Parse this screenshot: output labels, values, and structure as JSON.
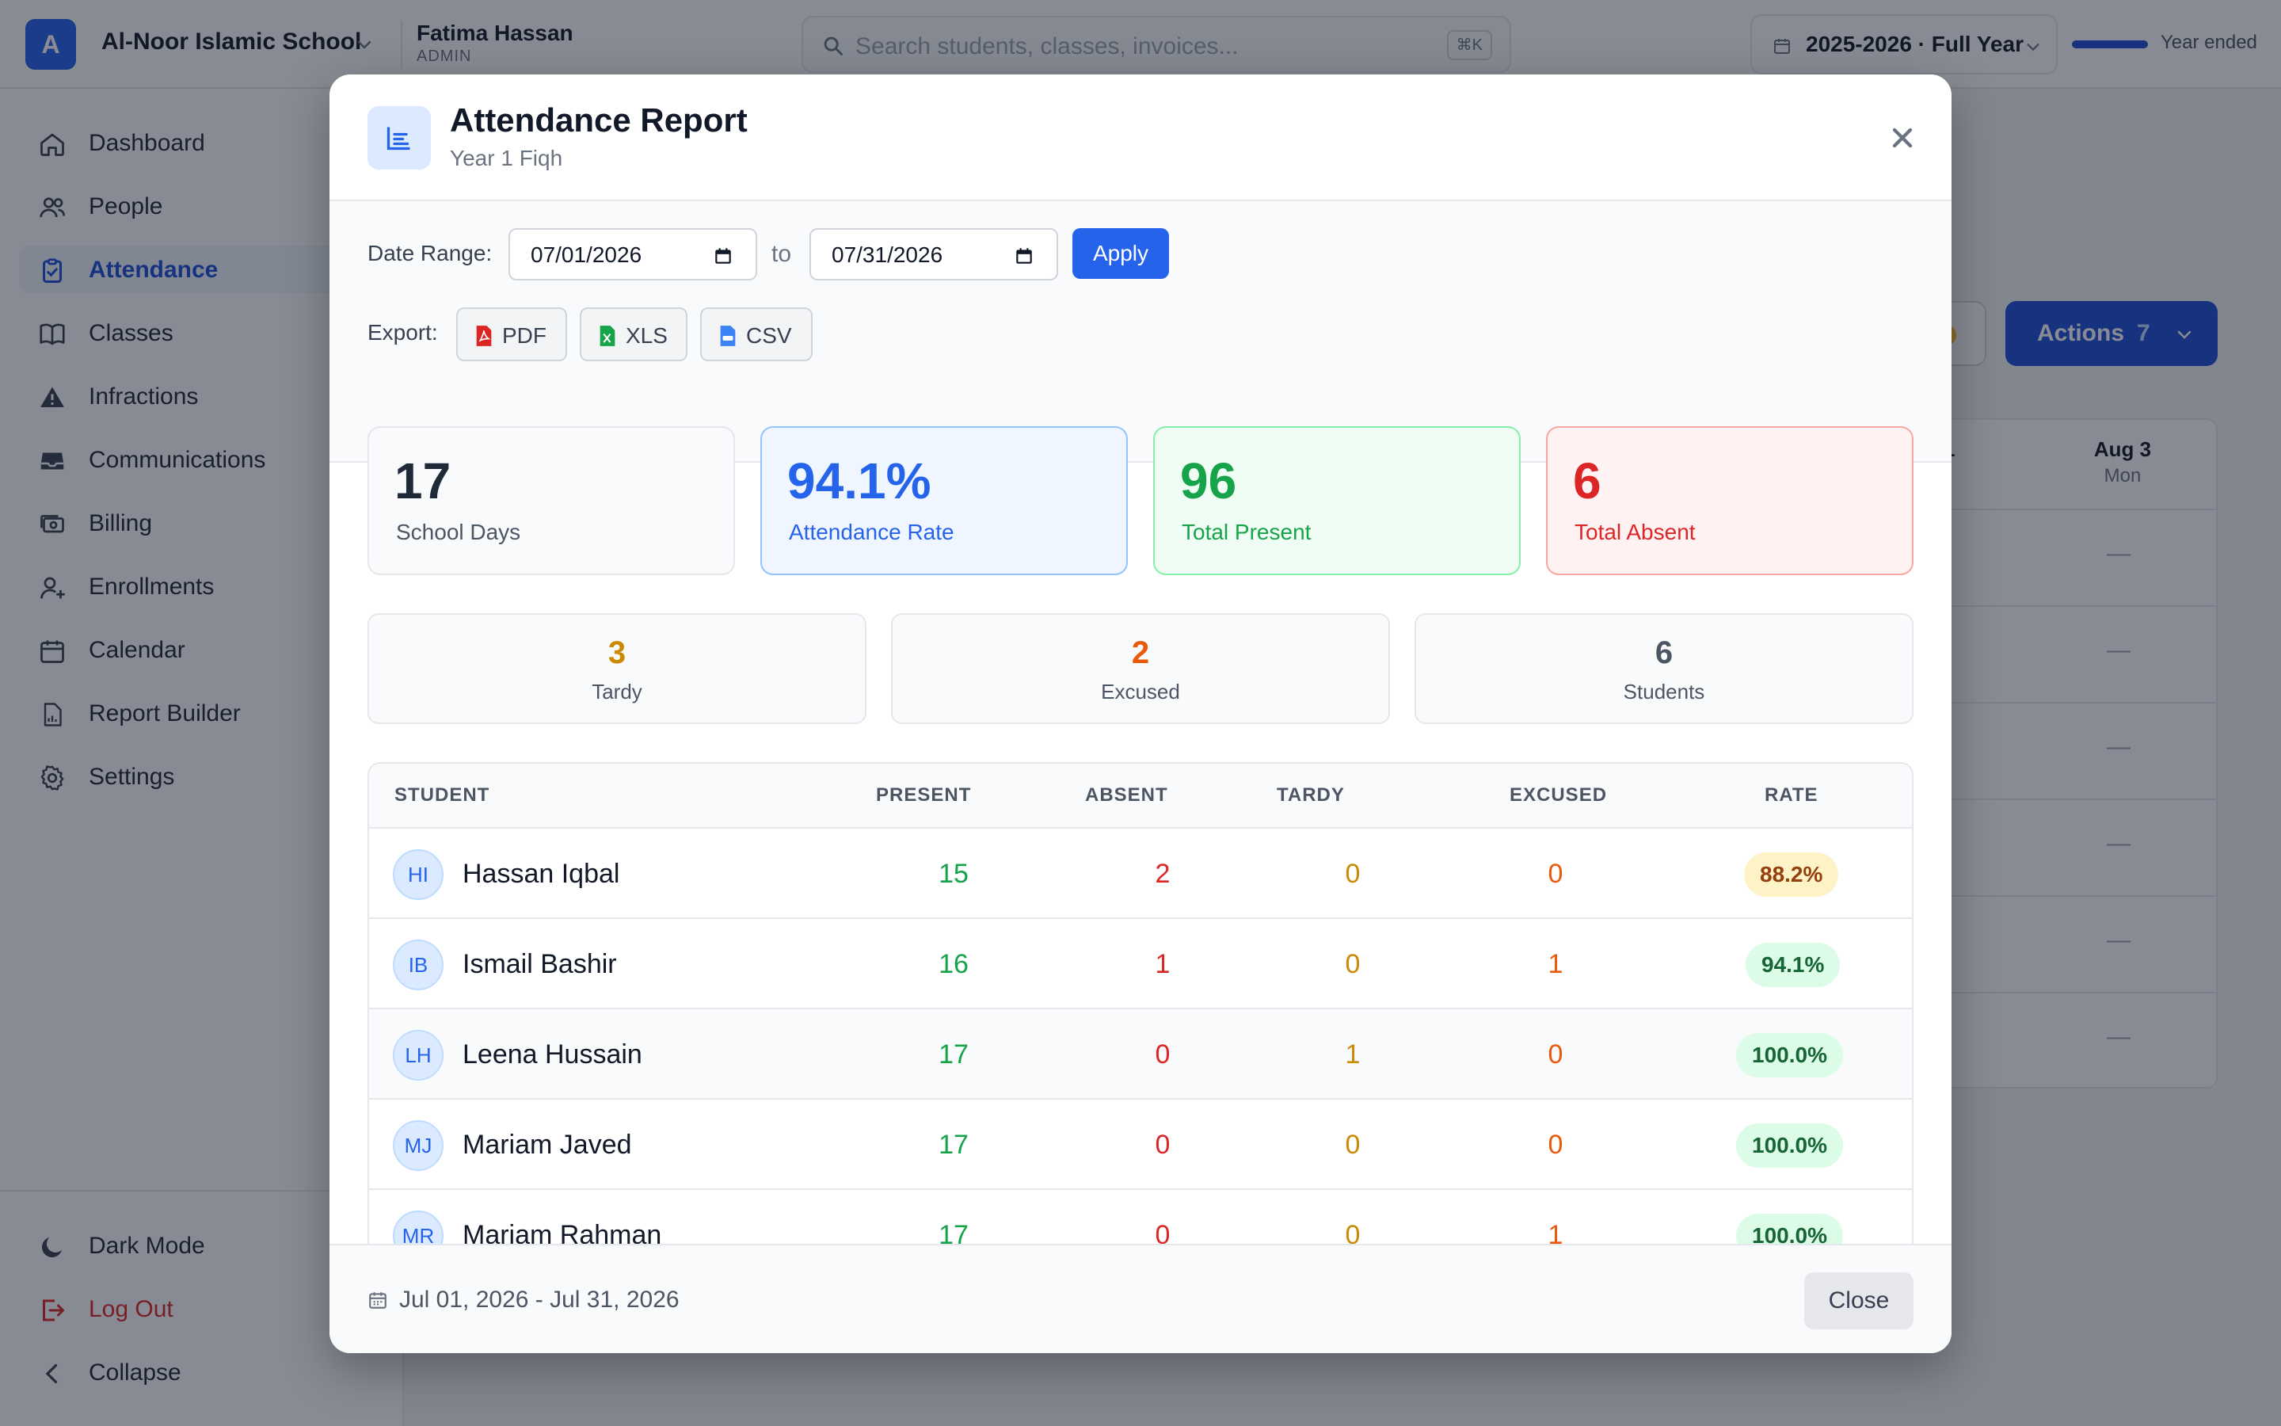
{
  "topbar": {
    "logo_letter": "A",
    "school_name": "Al-Noor Islamic School",
    "user_name": "Fatima Hassan",
    "user_role": "ADMIN",
    "search_placeholder": "Search students, classes, invoices...",
    "search_shortcut": "⌘K",
    "year_label": "2025-2026 · Full Year",
    "year_status": "Year ended",
    "year_progress": 1.0
  },
  "sidebar": {
    "items": [
      {
        "label": "Dashboard",
        "icon": "home-icon"
      },
      {
        "label": "People",
        "icon": "people-icon"
      },
      {
        "label": "Attendance",
        "icon": "clipboard-check-icon",
        "active": true
      },
      {
        "label": "Classes",
        "icon": "book-icon"
      },
      {
        "label": "Infractions",
        "icon": "warning-icon"
      },
      {
        "label": "Communications",
        "icon": "inbox-icon"
      },
      {
        "label": "Billing",
        "icon": "money-icon"
      },
      {
        "label": "Enrollments",
        "icon": "user-plus-icon"
      },
      {
        "label": "Calendar",
        "icon": "calendar-icon"
      },
      {
        "label": "Report Builder",
        "icon": "report-icon"
      },
      {
        "label": "Settings",
        "icon": "gear-icon"
      }
    ],
    "footer": {
      "dark_mode": "Dark Mode",
      "log_out": "Log Out",
      "collapse": "Collapse"
    }
  },
  "background": {
    "actions_label": "Actions",
    "actions_count": "7",
    "col_partial": "1",
    "col_date": "Aug 3",
    "col_day": "Mon",
    "dash": "—"
  },
  "modal": {
    "title": "Attendance Report",
    "subtitle": "Year 1 Fiqh",
    "filters": {
      "date_range_label": "Date Range:",
      "start_date": "07/01/2026",
      "to_label": "to",
      "end_date": "07/31/2026",
      "apply_label": "Apply",
      "export_label": "Export:",
      "export_pdf": "PDF",
      "export_xls": "XLS",
      "export_csv": "CSV"
    },
    "stats": {
      "school_days": {
        "value": "17",
        "label": "School Days"
      },
      "attendance_rate": {
        "value": "94.1%",
        "label": "Attendance Rate"
      },
      "total_present": {
        "value": "96",
        "label": "Total Present"
      },
      "total_absent": {
        "value": "6",
        "label": "Total Absent"
      }
    },
    "mini": {
      "tardy": {
        "value": "3",
        "label": "Tardy"
      },
      "excused": {
        "value": "2",
        "label": "Excused"
      },
      "students": {
        "value": "6",
        "label": "Students"
      }
    },
    "table": {
      "headers": {
        "student": "STUDENT",
        "present": "PRESENT",
        "absent": "ABSENT",
        "tardy": "TARDY",
        "excused": "EXCUSED",
        "rate": "RATE"
      },
      "rows": [
        {
          "initials": "HI",
          "name": "Hassan Iqbal",
          "present": "15",
          "absent": "2",
          "tardy": "0",
          "excused": "0",
          "rate": "88.2%"
        },
        {
          "initials": "IB",
          "name": "Ismail Bashir",
          "present": "16",
          "absent": "1",
          "tardy": "0",
          "excused": "1",
          "rate": "94.1%"
        },
        {
          "initials": "LH",
          "name": "Leena Hussain",
          "present": "17",
          "absent": "0",
          "tardy": "1",
          "excused": "0",
          "rate": "100.0%"
        },
        {
          "initials": "MJ",
          "name": "Mariam Javed",
          "present": "17",
          "absent": "0",
          "tardy": "0",
          "excused": "0",
          "rate": "100.0%"
        },
        {
          "initials": "MR",
          "name": "Mariam Rahman",
          "present": "17",
          "absent": "0",
          "tardy": "0",
          "excused": "1",
          "rate": "100.0%"
        }
      ]
    },
    "footer": {
      "range_text": "Jul 01, 2026 - Jul 31, 2026",
      "close_label": "Close"
    }
  },
  "colors": {
    "accent": "#2563eb",
    "present": "#16a34a",
    "absent": "#dc2626",
    "tardy": "#ca8a04",
    "excused": "#ea580c"
  }
}
